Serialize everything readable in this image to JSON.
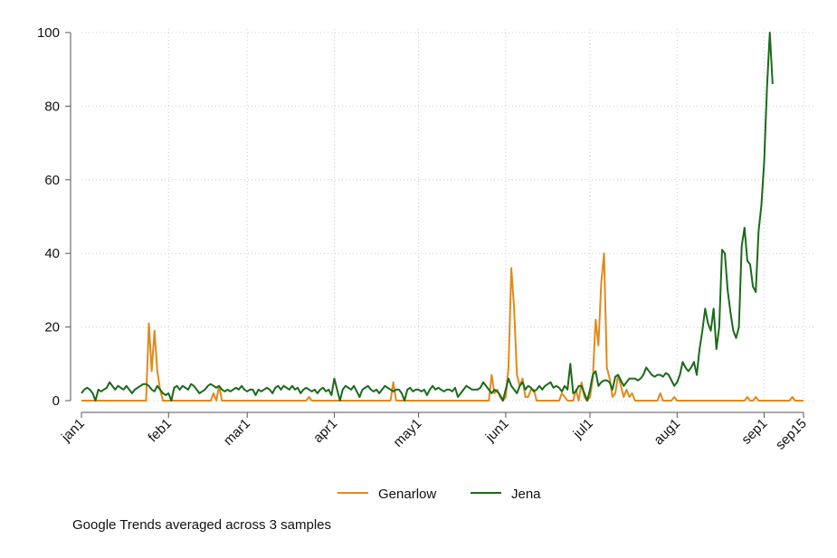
{
  "chart_data": {
    "type": "line",
    "title": "",
    "xlabel": "",
    "ylabel": "",
    "ylim": [
      0,
      100
    ],
    "xlim": [
      "jan1",
      "sep15"
    ],
    "y_ticks": [
      0,
      20,
      40,
      60,
      80,
      100
    ],
    "x_tick_labels": [
      "jan1",
      "feb1",
      "mar1",
      "apr1",
      "may1",
      "jun1",
      "jul1",
      "aug1",
      "sep1",
      "sep15"
    ],
    "grid": true,
    "legend_position": "bottom",
    "colors": {
      "Genarlow": "#E08A1E",
      "Jena": "#1A6B1A",
      "grid": "#CCCCCC",
      "axis": "#555555"
    },
    "series": [
      {
        "name": "Genarlow",
        "points": [
          [
            0,
            0
          ],
          [
            23,
            0
          ],
          [
            24,
            21
          ],
          [
            25,
            8
          ],
          [
            26,
            19
          ],
          [
            27,
            8
          ],
          [
            28,
            3
          ],
          [
            29,
            0
          ],
          [
            30,
            0
          ],
          [
            31,
            0
          ],
          [
            46,
            0
          ],
          [
            47,
            2
          ],
          [
            48,
            0
          ],
          [
            49,
            4
          ],
          [
            50,
            0
          ],
          [
            51,
            0
          ],
          [
            80,
            0
          ],
          [
            81,
            1
          ],
          [
            82,
            0
          ],
          [
            110,
            0
          ],
          [
            111,
            5
          ],
          [
            112,
            0
          ],
          [
            113,
            0
          ],
          [
            145,
            0
          ],
          [
            146,
            7
          ],
          [
            147,
            2
          ],
          [
            148,
            3
          ],
          [
            149,
            1
          ],
          [
            150,
            0
          ],
          [
            151,
            1
          ],
          [
            152,
            9
          ],
          [
            153,
            36
          ],
          [
            154,
            25
          ],
          [
            155,
            7
          ],
          [
            156,
            4
          ],
          [
            157,
            6
          ],
          [
            158,
            1
          ],
          [
            159,
            1
          ],
          [
            160,
            3
          ],
          [
            161,
            3
          ],
          [
            162,
            0
          ],
          [
            170,
            0
          ],
          [
            171,
            2
          ],
          [
            172,
            1
          ],
          [
            173,
            0
          ],
          [
            174,
            0
          ],
          [
            175,
            0
          ],
          [
            176,
            3
          ],
          [
            177,
            0
          ],
          [
            178,
            5
          ],
          [
            179,
            1
          ],
          [
            180,
            0
          ],
          [
            181,
            1
          ],
          [
            182,
            6
          ],
          [
            183,
            22
          ],
          [
            184,
            15
          ],
          [
            185,
            32
          ],
          [
            186,
            40
          ],
          [
            187,
            9
          ],
          [
            188,
            6
          ],
          [
            189,
            1
          ],
          [
            190,
            2
          ],
          [
            191,
            7
          ],
          [
            192,
            4
          ],
          [
            193,
            1
          ],
          [
            194,
            3
          ],
          [
            195,
            1
          ],
          [
            196,
            2
          ],
          [
            197,
            0
          ],
          [
            198,
            0
          ],
          [
            205,
            0
          ],
          [
            206,
            2
          ],
          [
            207,
            0
          ],
          [
            210,
            0
          ],
          [
            211,
            1
          ],
          [
            212,
            0
          ],
          [
            220,
            0
          ],
          [
            236,
            0
          ],
          [
            237,
            1
          ],
          [
            238,
            0
          ],
          [
            239,
            0
          ],
          [
            240,
            1
          ],
          [
            241,
            0
          ],
          [
            252,
            0
          ],
          [
            253,
            1
          ],
          [
            254,
            0
          ],
          [
            257,
            0
          ]
        ]
      },
      {
        "name": "Jena",
        "points": [
          [
            0,
            2
          ],
          [
            1,
            3
          ],
          [
            2,
            3.5
          ],
          [
            3,
            3
          ],
          [
            4,
            2
          ],
          [
            5,
            0
          ],
          [
            6,
            3
          ],
          [
            7,
            2.5
          ],
          [
            8,
            3
          ],
          [
            9,
            3.5
          ],
          [
            10,
            5
          ],
          [
            11,
            4
          ],
          [
            12,
            3
          ],
          [
            13,
            4
          ],
          [
            14,
            3.5
          ],
          [
            15,
            3
          ],
          [
            16,
            4
          ],
          [
            17,
            3
          ],
          [
            18,
            2
          ],
          [
            19,
            3
          ],
          [
            20,
            3.5
          ],
          [
            21,
            4
          ],
          [
            22,
            4.5
          ],
          [
            23,
            4.5
          ],
          [
            24,
            4
          ],
          [
            25,
            3
          ],
          [
            26,
            2.5
          ],
          [
            27,
            4
          ],
          [
            28,
            3
          ],
          [
            29,
            2
          ],
          [
            30,
            1.5
          ],
          [
            31,
            2
          ],
          [
            32,
            0
          ],
          [
            33,
            3.5
          ],
          [
            34,
            4
          ],
          [
            35,
            3
          ],
          [
            36,
            4
          ],
          [
            37,
            3.5
          ],
          [
            38,
            3
          ],
          [
            39,
            4.5
          ],
          [
            40,
            4
          ],
          [
            41,
            3
          ],
          [
            42,
            2
          ],
          [
            43,
            2.5
          ],
          [
            44,
            3
          ],
          [
            45,
            4
          ],
          [
            46,
            4.5
          ],
          [
            47,
            4
          ],
          [
            48,
            3.5
          ],
          [
            49,
            4
          ],
          [
            50,
            3
          ],
          [
            51,
            2.5
          ],
          [
            52,
            3
          ],
          [
            53,
            2.5
          ],
          [
            54,
            3
          ],
          [
            55,
            3.5
          ],
          [
            56,
            3
          ],
          [
            57,
            4
          ],
          [
            58,
            3
          ],
          [
            59,
            2.5
          ],
          [
            60,
            3
          ],
          [
            61,
            3
          ],
          [
            62,
            1.5
          ],
          [
            63,
            3
          ],
          [
            64,
            2.5
          ],
          [
            65,
            3
          ],
          [
            66,
            3.5
          ],
          [
            67,
            3
          ],
          [
            68,
            2
          ],
          [
            69,
            3.5
          ],
          [
            70,
            4
          ],
          [
            71,
            3
          ],
          [
            72,
            4
          ],
          [
            73,
            3.5
          ],
          [
            74,
            3
          ],
          [
            75,
            4
          ],
          [
            76,
            3
          ],
          [
            77,
            3.5
          ],
          [
            78,
            2
          ],
          [
            79,
            3
          ],
          [
            80,
            3.5
          ],
          [
            81,
            3
          ],
          [
            82,
            2.5
          ],
          [
            83,
            3
          ],
          [
            84,
            2
          ],
          [
            85,
            3
          ],
          [
            86,
            3.5
          ],
          [
            87,
            2.5
          ],
          [
            88,
            3
          ],
          [
            89,
            1.5
          ],
          [
            90,
            6
          ],
          [
            91,
            3
          ],
          [
            92,
            0
          ],
          [
            93,
            3
          ],
          [
            94,
            4
          ],
          [
            95,
            3.5
          ],
          [
            96,
            3
          ],
          [
            97,
            4
          ],
          [
            98,
            2.5
          ],
          [
            99,
            1
          ],
          [
            100,
            3
          ],
          [
            101,
            3.5
          ],
          [
            102,
            4
          ],
          [
            103,
            3
          ],
          [
            104,
            2.5
          ],
          [
            105,
            3
          ],
          [
            106,
            2
          ],
          [
            107,
            3
          ],
          [
            108,
            4
          ],
          [
            109,
            3.5
          ],
          [
            110,
            3
          ],
          [
            111,
            2.5
          ],
          [
            112,
            3
          ],
          [
            113,
            3
          ],
          [
            114,
            2
          ],
          [
            115,
            0
          ],
          [
            116,
            3
          ],
          [
            117,
            3.5
          ],
          [
            118,
            2.5
          ],
          [
            119,
            3
          ],
          [
            120,
            3
          ],
          [
            121,
            2.5
          ],
          [
            122,
            3
          ],
          [
            123,
            1.5
          ],
          [
            124,
            3
          ],
          [
            125,
            4
          ],
          [
            126,
            3
          ],
          [
            127,
            3.5
          ],
          [
            128,
            3
          ],
          [
            129,
            2.5
          ],
          [
            130,
            3
          ],
          [
            131,
            3
          ],
          [
            132,
            2.5
          ],
          [
            133,
            3.5
          ],
          [
            134,
            1
          ],
          [
            135,
            2
          ],
          [
            136,
            3
          ],
          [
            137,
            4
          ],
          [
            138,
            3.5
          ],
          [
            139,
            3
          ],
          [
            140,
            3
          ],
          [
            141,
            3
          ],
          [
            142,
            3.5
          ],
          [
            143,
            5
          ],
          [
            144,
            4
          ],
          [
            145,
            3
          ],
          [
            146,
            2
          ],
          [
            147,
            3
          ],
          [
            148,
            2.5
          ],
          [
            149,
            1.5
          ],
          [
            150,
            0
          ],
          [
            151,
            3
          ],
          [
            152,
            6
          ],
          [
            153,
            4
          ],
          [
            154,
            3
          ],
          [
            155,
            2
          ],
          [
            156,
            4
          ],
          [
            157,
            5
          ],
          [
            158,
            3
          ],
          [
            159,
            4
          ],
          [
            160,
            3.5
          ],
          [
            161,
            2.5
          ],
          [
            162,
            3
          ],
          [
            163,
            4
          ],
          [
            164,
            3
          ],
          [
            165,
            4
          ],
          [
            166,
            4.5
          ],
          [
            167,
            5
          ],
          [
            168,
            3.5
          ],
          [
            169,
            4
          ],
          [
            170,
            3.5
          ],
          [
            171,
            2.5
          ],
          [
            172,
            4
          ],
          [
            173,
            3
          ],
          [
            174,
            10
          ],
          [
            175,
            2
          ],
          [
            176,
            2.5
          ],
          [
            177,
            4
          ],
          [
            178,
            4
          ],
          [
            179,
            2
          ],
          [
            180,
            0
          ],
          [
            181,
            3
          ],
          [
            182,
            7
          ],
          [
            183,
            8
          ],
          [
            184,
            4
          ],
          [
            185,
            5
          ],
          [
            186,
            5.5
          ],
          [
            187,
            5.5
          ],
          [
            188,
            5
          ],
          [
            189,
            3
          ],
          [
            190,
            6.5
          ],
          [
            191,
            7
          ],
          [
            192,
            5.5
          ],
          [
            193,
            4
          ],
          [
            194,
            5
          ],
          [
            195,
            6
          ],
          [
            196,
            6
          ],
          [
            197,
            6
          ],
          [
            198,
            5.5
          ],
          [
            199,
            6
          ],
          [
            200,
            7
          ],
          [
            201,
            9
          ],
          [
            202,
            8
          ],
          [
            203,
            7
          ],
          [
            204,
            6.5
          ],
          [
            205,
            7
          ],
          [
            206,
            7
          ],
          [
            207,
            6.5
          ],
          [
            208,
            7.5
          ],
          [
            209,
            7
          ],
          [
            210,
            5.5
          ],
          [
            211,
            4
          ],
          [
            212,
            5
          ],
          [
            213,
            7
          ],
          [
            214,
            10.5
          ],
          [
            215,
            9
          ],
          [
            216,
            8
          ],
          [
            217,
            9
          ],
          [
            218,
            10.5
          ],
          [
            219,
            7
          ],
          [
            220,
            14
          ],
          [
            221,
            19
          ],
          [
            222,
            25
          ],
          [
            223,
            21
          ],
          [
            224,
            19
          ],
          [
            225,
            25
          ],
          [
            226,
            14
          ],
          [
            227,
            20
          ],
          [
            228,
            41
          ],
          [
            229,
            40
          ],
          [
            230,
            30
          ],
          [
            231,
            24
          ],
          [
            232,
            19
          ],
          [
            233,
            17
          ],
          [
            234,
            20
          ],
          [
            235,
            42
          ],
          [
            236,
            47
          ],
          [
            237,
            38
          ],
          [
            238,
            37
          ],
          [
            239,
            31
          ],
          [
            240,
            29.5
          ],
          [
            241,
            46
          ],
          [
            242,
            53
          ],
          [
            243,
            65
          ],
          [
            244,
            85
          ],
          [
            245,
            100
          ],
          [
            246,
            86
          ]
        ]
      }
    ]
  },
  "legend": {
    "item1": "Genarlow",
    "item2": "Jena"
  },
  "note": "Google Trends averaged across 3 samples"
}
